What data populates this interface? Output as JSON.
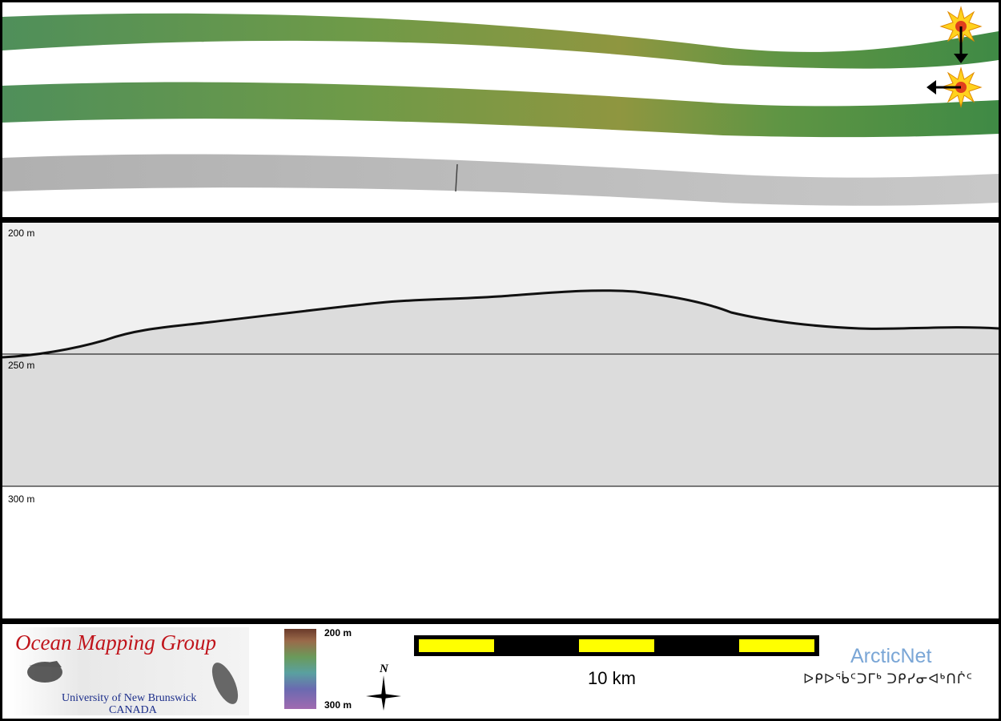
{
  "swath_panel": {
    "icons": [
      "sun-arrow-down-icon",
      "sun-arrow-left-icon"
    ]
  },
  "profile_panel": {
    "depth_labels": {
      "top": "200 m",
      "middle": "250 m",
      "bottom": "300 m"
    }
  },
  "footer": {
    "logo": {
      "title": "Ocean Mapping Group",
      "line1": "University of New Brunswick",
      "line2": "CANADA"
    },
    "colorbar": {
      "top_label": "200 m",
      "bottom_label": "300 m"
    },
    "compass": {
      "north_label": "N"
    },
    "scale": {
      "label": "10 km"
    },
    "partner": {
      "name": "ArcticNet",
      "syllabics": "ᐅᑭᐅᖄᑦᑐᒥᒃ ᑐᑭᓯᓂᐊᒃᑎᒌᑦ"
    },
    "colors": {
      "scale_fill": "#ffff00",
      "omg_title": "#c0141b",
      "omg_sub": "#1b2d8a",
      "arcticnet": "#7aa6d6"
    }
  }
}
